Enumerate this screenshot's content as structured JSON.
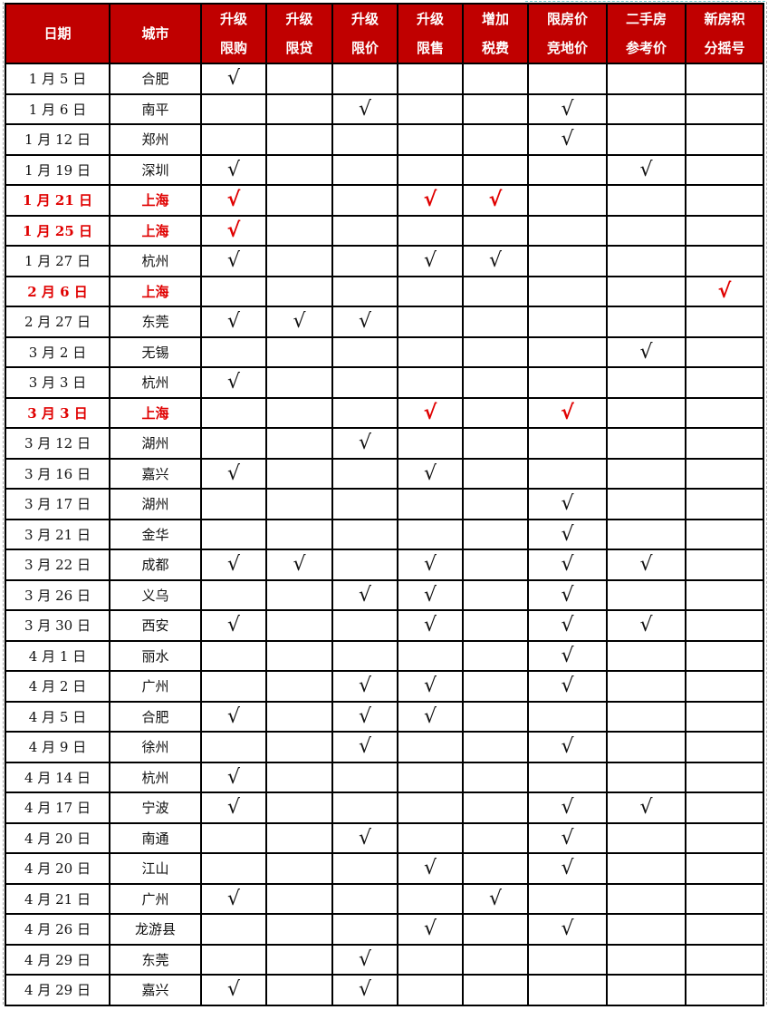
{
  "colors": {
    "header_bg": "#c00000",
    "highlight_text": "#e00000"
  },
  "table": {
    "headers": [
      "日期",
      "城市",
      "升级\n限购",
      "升级\n限贷",
      "升级\n限价",
      "升级\n限售",
      "增加\n税费",
      "限房价\n竞地价",
      "二手房\n参考价",
      "新房积\n分摇号"
    ],
    "rows": [
      {
        "date": "1 月 5 日",
        "city": "合肥",
        "highlight": false,
        "marks": [
          "√",
          "",
          "",
          "",
          "",
          "",
          "",
          ""
        ]
      },
      {
        "date": "1 月 6 日",
        "city": "南平",
        "highlight": false,
        "marks": [
          "",
          "",
          "√",
          "",
          "",
          "√",
          "",
          ""
        ]
      },
      {
        "date": "1 月 12 日",
        "city": "郑州",
        "highlight": false,
        "marks": [
          "",
          "",
          "",
          "",
          "",
          "√",
          "",
          ""
        ]
      },
      {
        "date": "1 月 19 日",
        "city": "深圳",
        "highlight": false,
        "marks": [
          "√",
          "",
          "",
          "",
          "",
          "",
          "√",
          ""
        ]
      },
      {
        "date": "1 月 21 日",
        "city": "上海",
        "highlight": true,
        "marks": [
          "√",
          "",
          "",
          "√",
          "√",
          "",
          "",
          ""
        ]
      },
      {
        "date": "1 月 25 日",
        "city": "上海",
        "highlight": true,
        "marks": [
          "√",
          "",
          "",
          "",
          "",
          "",
          "",
          ""
        ]
      },
      {
        "date": "1 月 27 日",
        "city": "杭州",
        "highlight": false,
        "marks": [
          "√",
          "",
          "",
          "√",
          "√",
          "",
          "",
          ""
        ]
      },
      {
        "date": "2 月 6 日",
        "city": "上海",
        "highlight": true,
        "marks": [
          "",
          "",
          "",
          "",
          "",
          "",
          "",
          "√"
        ]
      },
      {
        "date": "2 月 27 日",
        "city": "东莞",
        "highlight": false,
        "marks": [
          "√",
          "√",
          "√",
          "",
          "",
          "",
          "",
          ""
        ]
      },
      {
        "date": "3 月 2 日",
        "city": "无锡",
        "highlight": false,
        "marks": [
          "",
          "",
          "",
          "",
          "",
          "",
          "√",
          ""
        ]
      },
      {
        "date": "3 月 3 日",
        "city": "杭州",
        "highlight": false,
        "marks": [
          "√",
          "",
          "",
          "",
          "",
          "",
          "",
          ""
        ]
      },
      {
        "date": "3 月 3 日",
        "city": "上海",
        "highlight": true,
        "marks": [
          "",
          "",
          "",
          "√",
          "",
          "√",
          "",
          ""
        ]
      },
      {
        "date": "3 月 12 日",
        "city": "湖州",
        "highlight": false,
        "marks": [
          "",
          "",
          "√",
          "",
          "",
          "",
          "",
          ""
        ]
      },
      {
        "date": "3 月 16 日",
        "city": "嘉兴",
        "highlight": false,
        "marks": [
          "√",
          "",
          "",
          "√",
          "",
          "",
          "",
          ""
        ]
      },
      {
        "date": "3 月 17 日",
        "city": "湖州",
        "highlight": false,
        "marks": [
          "",
          "",
          "",
          "",
          "",
          "√",
          "",
          ""
        ]
      },
      {
        "date": "3 月 21 日",
        "city": "金华",
        "highlight": false,
        "marks": [
          "",
          "",
          "",
          "",
          "",
          "√",
          "",
          ""
        ]
      },
      {
        "date": "3 月 22 日",
        "city": "成都",
        "highlight": false,
        "marks": [
          "√",
          "√",
          "",
          "√",
          "",
          "√",
          "√",
          ""
        ]
      },
      {
        "date": "3 月 26 日",
        "city": "义乌",
        "highlight": false,
        "marks": [
          "",
          "",
          "√",
          "√",
          "",
          "√",
          "",
          ""
        ]
      },
      {
        "date": "3 月 30 日",
        "city": "西安",
        "highlight": false,
        "marks": [
          "√",
          "",
          "",
          "√",
          "",
          "√",
          "√",
          ""
        ]
      },
      {
        "date": "4 月 1 日",
        "city": "丽水",
        "highlight": false,
        "marks": [
          "",
          "",
          "",
          "",
          "",
          "√",
          "",
          ""
        ]
      },
      {
        "date": "4 月 2 日",
        "city": "广州",
        "highlight": false,
        "marks": [
          "",
          "",
          "√",
          "√",
          "",
          "√",
          "",
          ""
        ]
      },
      {
        "date": "4 月 5 日",
        "city": "合肥",
        "highlight": false,
        "marks": [
          "√",
          "",
          "√",
          "√",
          "",
          "",
          "",
          ""
        ]
      },
      {
        "date": "4 月 9 日",
        "city": "徐州",
        "highlight": false,
        "marks": [
          "",
          "",
          "√",
          "",
          "",
          "√",
          "",
          ""
        ]
      },
      {
        "date": "4 月 14 日",
        "city": "杭州",
        "highlight": false,
        "marks": [
          "√",
          "",
          "",
          "",
          "",
          "",
          "",
          ""
        ]
      },
      {
        "date": "4 月 17 日",
        "city": "宁波",
        "highlight": false,
        "marks": [
          "√",
          "",
          "",
          "",
          "",
          "√",
          "√",
          ""
        ]
      },
      {
        "date": "4 月 20 日",
        "city": "南通",
        "highlight": false,
        "marks": [
          "",
          "",
          "√",
          "",
          "",
          "√",
          "",
          ""
        ]
      },
      {
        "date": "4 月 20 日",
        "city": "江山",
        "highlight": false,
        "marks": [
          "",
          "",
          "",
          "√",
          "",
          "√",
          "",
          ""
        ]
      },
      {
        "date": "4 月 21 日",
        "city": "广州",
        "highlight": false,
        "marks": [
          "√",
          "",
          "",
          "",
          "√",
          "",
          "",
          ""
        ]
      },
      {
        "date": "4 月 26 日",
        "city": "龙游县",
        "highlight": false,
        "marks": [
          "",
          "",
          "",
          "√",
          "",
          "√",
          "",
          ""
        ]
      },
      {
        "date": "4 月 29 日",
        "city": "东莞",
        "highlight": false,
        "marks": [
          "",
          "",
          "√",
          "",
          "",
          "",
          "",
          ""
        ]
      },
      {
        "date": "4 月 29 日",
        "city": "嘉兴",
        "highlight": false,
        "marks": [
          "√",
          "",
          "√",
          "",
          "",
          "",
          "",
          ""
        ]
      }
    ]
  }
}
